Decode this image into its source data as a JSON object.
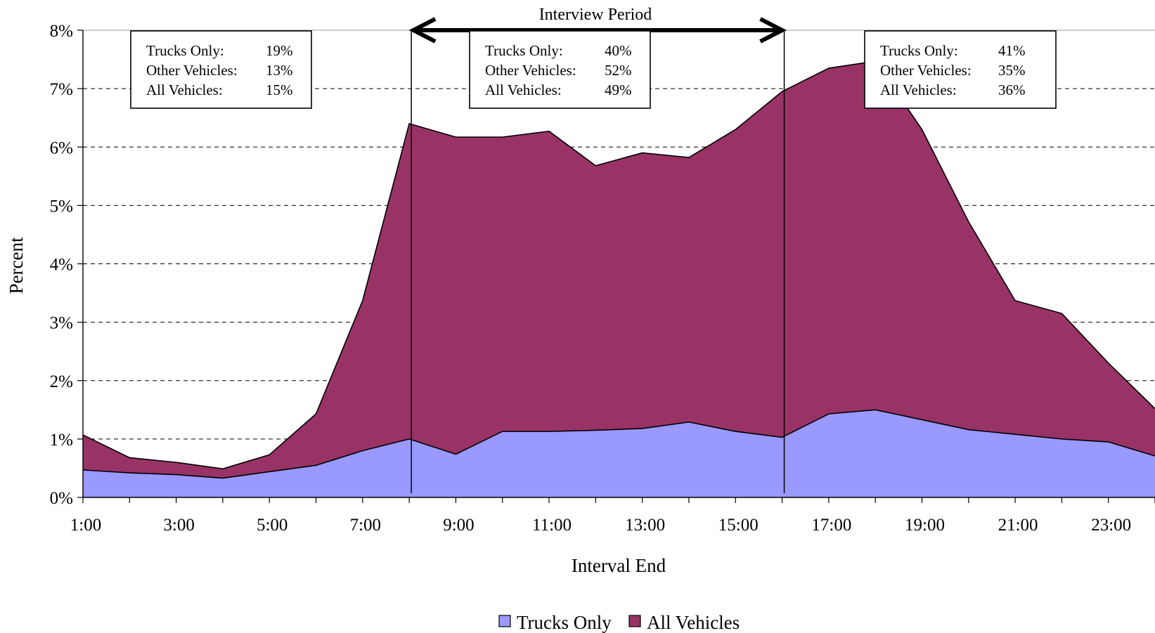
{
  "colors": {
    "trucks": "#9999ff",
    "all": "#993366",
    "grid": "#000000",
    "background": "#ffffff"
  },
  "chart_data": {
    "type": "area",
    "title": "",
    "xlabel": "Interval End",
    "ylabel": "Percent",
    "ylim": [
      0,
      8
    ],
    "y_ticks": [
      "0%",
      "1%",
      "2%",
      "3%",
      "4%",
      "5%",
      "6%",
      "7%",
      "8%"
    ],
    "x_tick_labels": [
      "1:00",
      "3:00",
      "5:00",
      "7:00",
      "9:00",
      "11:00",
      "13:00",
      "15:00",
      "17:00",
      "19:00",
      "21:00",
      "23:00"
    ],
    "x": [
      "1:00",
      "2:00",
      "3:00",
      "4:00",
      "5:00",
      "6:00",
      "7:00",
      "8:00",
      "9:00",
      "10:00",
      "11:00",
      "12:00",
      "13:00",
      "14:00",
      "15:00",
      "16:00",
      "17:00",
      "18:00",
      "19:00",
      "20:00",
      "21:00",
      "22:00",
      "23:00",
      "24:00"
    ],
    "series": [
      {
        "name": "All Vehicles",
        "color": "#993366",
        "values": [
          1.07,
          0.68,
          0.6,
          0.49,
          0.73,
          1.43,
          3.37,
          6.4,
          6.17,
          6.17,
          6.27,
          5.68,
          5.9,
          5.82,
          6.3,
          6.95,
          7.35,
          7.47,
          6.3,
          4.72,
          3.37,
          3.15,
          2.3,
          1.52
        ]
      },
      {
        "name": "Trucks Only",
        "color": "#9999ff",
        "values": [
          0.47,
          0.42,
          0.39,
          0.33,
          0.44,
          0.55,
          0.8,
          1.0,
          0.74,
          1.13,
          1.13,
          1.15,
          1.18,
          1.29,
          1.13,
          1.03,
          1.43,
          1.5,
          1.33,
          1.16,
          1.08,
          1.0,
          0.95,
          0.71
        ]
      }
    ],
    "legend": {
      "placement": "bottom",
      "items": [
        "Trucks Only",
        "All Vehicles"
      ]
    },
    "interview_period": {
      "label": "Interview Period",
      "start": "8:00",
      "end": "16:00"
    },
    "annotation_boxes": [
      {
        "rows": [
          {
            "label": "Trucks Only:",
            "value": "19%"
          },
          {
            "label": "Other Vehicles:",
            "value": "13%"
          },
          {
            "label": "All Vehicles:",
            "value": "15%"
          }
        ]
      },
      {
        "rows": [
          {
            "label": "Trucks Only:",
            "value": "40%"
          },
          {
            "label": "Other Vehicles:",
            "value": "52%"
          },
          {
            "label": "All Vehicles:",
            "value": "49%"
          }
        ]
      },
      {
        "rows": [
          {
            "label": "Trucks Only:",
            "value": "41%"
          },
          {
            "label": "Other Vehicles:",
            "value": "35%"
          },
          {
            "label": "All Vehicles:",
            "value": "36%"
          }
        ]
      }
    ]
  }
}
